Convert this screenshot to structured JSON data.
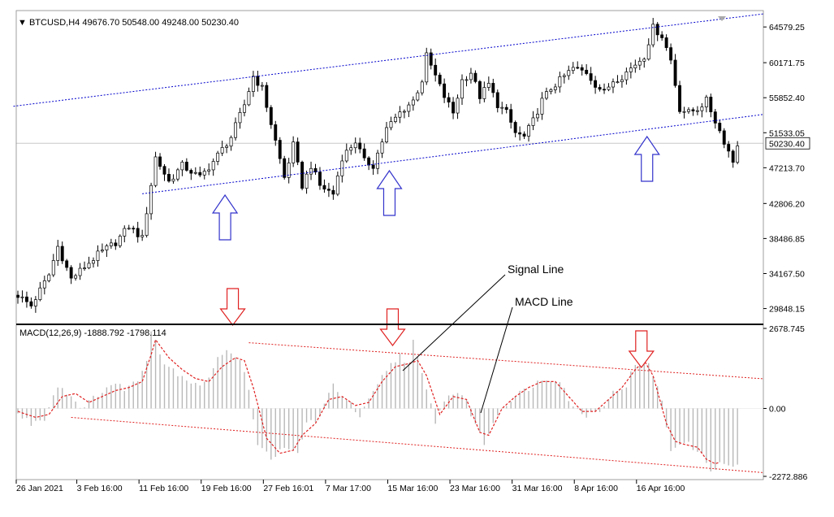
{
  "chart_data": [
    {
      "type": "candlestick",
      "symbol_label": "BTCUSD,H4",
      "ohlc_label": "49676.70 50548.00 49248.00 50230.40",
      "current_price": "50230.40",
      "ylim": [
        28000,
        66500
      ],
      "y_tick_labels": [
        "64579.25",
        "60171.75",
        "55852.40",
        "51533.05",
        "47213.70",
        "42806.20",
        "38486.85",
        "34167.50",
        "29848.15"
      ],
      "y_ticks": [
        64579.25,
        60171.75,
        55852.4,
        51533.05,
        47213.7,
        42806.2,
        38486.85,
        34167.5,
        29848.15
      ],
      "close_anchors": [
        [
          0,
          31500
        ],
        [
          3,
          30200
        ],
        [
          7,
          34000
        ],
        [
          9,
          37500
        ],
        [
          12,
          33500
        ],
        [
          15,
          35000
        ],
        [
          18,
          36500
        ],
        [
          22,
          38000
        ],
        [
          25,
          40000
        ],
        [
          28,
          38500
        ],
        [
          31,
          48500
        ],
        [
          34,
          45500
        ],
        [
          37,
          47500
        ],
        [
          41,
          46000
        ],
        [
          44,
          48000
        ],
        [
          48,
          51000
        ],
        [
          51,
          55000
        ],
        [
          53,
          58500
        ],
        [
          55,
          57000
        ],
        [
          58,
          50500
        ],
        [
          60,
          46000
        ],
        [
          62,
          50000
        ],
        [
          64,
          45000
        ],
        [
          66,
          47500
        ],
        [
          68,
          45000
        ],
        [
          71,
          44000
        ],
        [
          73,
          48500
        ],
        [
          76,
          50500
        ],
        [
          78,
          48000
        ],
        [
          80,
          47500
        ],
        [
          83,
          52000
        ],
        [
          86,
          54000
        ],
        [
          89,
          55500
        ],
        [
          91,
          58000
        ],
        [
          92,
          61000
        ],
        [
          94,
          58500
        ],
        [
          96,
          56000
        ],
        [
          98,
          54000
        ],
        [
          100,
          58000
        ],
        [
          102,
          59000
        ],
        [
          104,
          56000
        ],
        [
          106,
          57500
        ],
        [
          108,
          55000
        ],
        [
          110,
          54000
        ],
        [
          112,
          51500
        ],
        [
          114,
          51000
        ],
        [
          116,
          53000
        ],
        [
          118,
          55500
        ],
        [
          120,
          57000
        ],
        [
          122,
          58000
        ],
        [
          125,
          59500
        ],
        [
          128,
          59000
        ],
        [
          130,
          57500
        ],
        [
          132,
          56500
        ],
        [
          134,
          58000
        ],
        [
          136,
          58500
        ],
        [
          139,
          60000
        ],
        [
          141,
          61000
        ],
        [
          143,
          64500
        ],
        [
          145,
          63500
        ],
        [
          147,
          60500
        ],
        [
          149,
          54500
        ],
        [
          151,
          54000
        ],
        [
          153,
          54500
        ],
        [
          155,
          55500
        ],
        [
          157,
          53000
        ],
        [
          159,
          50500
        ],
        [
          161,
          48000
        ],
        [
          162,
          50230
        ]
      ],
      "trendlines": [
        {
          "name": "upper-channel",
          "points": [
            [
              -1,
              54800
            ],
            [
              168,
              66200
            ]
          ]
        },
        {
          "name": "lower-channel",
          "points": [
            [
              28,
              44000
            ],
            [
              168,
              53800
            ]
          ]
        }
      ],
      "up_arrows_at_index": [
        47,
        84,
        142
      ]
    },
    {
      "type": "macd",
      "label": "MACD(12,26,9) -1888.792 -1798.114",
      "ylim": [
        -2272.886,
        2678.745
      ],
      "y_tick_labels": [
        "2678.745",
        "0.00",
        "-2272.886"
      ],
      "y_ticks": [
        2678.745,
        0,
        -2272.886
      ],
      "macd_anchors": [
        [
          0,
          -200
        ],
        [
          3,
          -500
        ],
        [
          6,
          -300
        ],
        [
          9,
          800
        ],
        [
          12,
          400
        ],
        [
          15,
          0
        ],
        [
          18,
          500
        ],
        [
          21,
          800
        ],
        [
          24,
          700
        ],
        [
          27,
          900
        ],
        [
          29,
          1700
        ],
        [
          30,
          2700
        ],
        [
          33,
          1500
        ],
        [
          36,
          1200
        ],
        [
          39,
          900
        ],
        [
          42,
          800
        ],
        [
          45,
          1700
        ],
        [
          48,
          1900
        ],
        [
          50,
          1700
        ],
        [
          52,
          700
        ],
        [
          54,
          -1300
        ],
        [
          57,
          -1600
        ],
        [
          60,
          -1400
        ],
        [
          63,
          -1500
        ],
        [
          65,
          -500
        ],
        [
          68,
          -300
        ],
        [
          71,
          800
        ],
        [
          74,
          300
        ],
        [
          77,
          -300
        ],
        [
          80,
          500
        ],
        [
          83,
          1300
        ],
        [
          86,
          1800
        ],
        [
          88,
          1500
        ],
        [
          89,
          2200
        ],
        [
          91,
          1100
        ],
        [
          94,
          -400
        ],
        [
          97,
          500
        ],
        [
          100,
          500
        ],
        [
          103,
          -500
        ],
        [
          105,
          -1200
        ],
        [
          107,
          -400
        ],
        [
          110,
          200
        ],
        [
          113,
          500
        ],
        [
          116,
          800
        ],
        [
          119,
          1000
        ],
        [
          122,
          1000
        ],
        [
          125,
          0
        ],
        [
          128,
          -200
        ],
        [
          131,
          0
        ],
        [
          134,
          500
        ],
        [
          137,
          800
        ],
        [
          140,
          1800
        ],
        [
          142,
          1600
        ],
        [
          145,
          200
        ],
        [
          147,
          -1400
        ],
        [
          149,
          -1100
        ],
        [
          152,
          -1300
        ],
        [
          154,
          -1600
        ],
        [
          156,
          -2000
        ],
        [
          158,
          -1900
        ]
      ],
      "signal_line_anchors": [
        [
          0,
          -100
        ],
        [
          4,
          -300
        ],
        [
          7,
          -200
        ],
        [
          10,
          400
        ],
        [
          13,
          500
        ],
        [
          16,
          200
        ],
        [
          19,
          400
        ],
        [
          22,
          600
        ],
        [
          25,
          700
        ],
        [
          28,
          900
        ],
        [
          30,
          1800
        ],
        [
          31,
          2300
        ],
        [
          34,
          1700
        ],
        [
          37,
          1300
        ],
        [
          40,
          1000
        ],
        [
          43,
          900
        ],
        [
          46,
          1400
        ],
        [
          49,
          1700
        ],
        [
          51,
          1600
        ],
        [
          53,
          700
        ],
        [
          56,
          -1000
        ],
        [
          59,
          -1500
        ],
        [
          62,
          -1400
        ],
        [
          64,
          -900
        ],
        [
          67,
          -500
        ],
        [
          70,
          300
        ],
        [
          73,
          400
        ],
        [
          76,
          100
        ],
        [
          79,
          200
        ],
        [
          82,
          900
        ],
        [
          85,
          1400
        ],
        [
          88,
          1500
        ],
        [
          90,
          1600
        ],
        [
          92,
          1100
        ],
        [
          95,
          -200
        ],
        [
          98,
          400
        ],
        [
          101,
          300
        ],
        [
          104,
          -800
        ],
        [
          106,
          -900
        ],
        [
          109,
          0
        ],
        [
          112,
          400
        ],
        [
          115,
          700
        ],
        [
          118,
          900
        ],
        [
          121,
          900
        ],
        [
          124,
          400
        ],
        [
          127,
          -100
        ],
        [
          130,
          -100
        ],
        [
          133,
          300
        ],
        [
          136,
          700
        ],
        [
          139,
          1300
        ],
        [
          141,
          1600
        ],
        [
          143,
          1100
        ],
        [
          146,
          -500
        ],
        [
          148,
          -1100
        ],
        [
          150,
          -1200
        ],
        [
          153,
          -1300
        ],
        [
          155,
          -1700
        ],
        [
          157,
          -1850
        ],
        [
          158,
          -1800
        ]
      ],
      "trendlines": [
        {
          "name": "upper-macd-trend",
          "points": [
            [
              52,
              2200
            ],
            [
              168,
              990
            ]
          ]
        },
        {
          "name": "lower-macd-trend",
          "points": [
            [
              12,
              -300
            ],
            [
              168,
              -2150
            ]
          ]
        }
      ],
      "down_arrows_at_index": [
        48,
        84,
        140
      ],
      "annotations": [
        {
          "text": "Signal Line"
        },
        {
          "text": "MACD Line"
        }
      ]
    }
  ],
  "x_tick_labels": [
    "26 Jan 2021",
    "3 Feb 16:00",
    "11 Feb 16:00",
    "19 Feb 16:00",
    "27 Feb 16:01",
    "7 Mar 17:00",
    "15 Mar 16:00",
    "23 Mar 16:00",
    "31 Mar 16:00",
    "8 Apr 16:00",
    "16 Apr 16:00"
  ],
  "x_tick_indices": [
    0,
    14,
    28,
    42,
    56,
    70,
    84,
    98,
    112,
    126,
    140
  ],
  "colors": {
    "candle": "#000000",
    "channel": "#0000cc",
    "up_arrow": "#3333cc",
    "down_arrow": "#e02020",
    "histogram": "#b8b8b8",
    "signal": "#e02020",
    "macd_trend": "#e02020",
    "price_level": "#c8c8c8"
  }
}
